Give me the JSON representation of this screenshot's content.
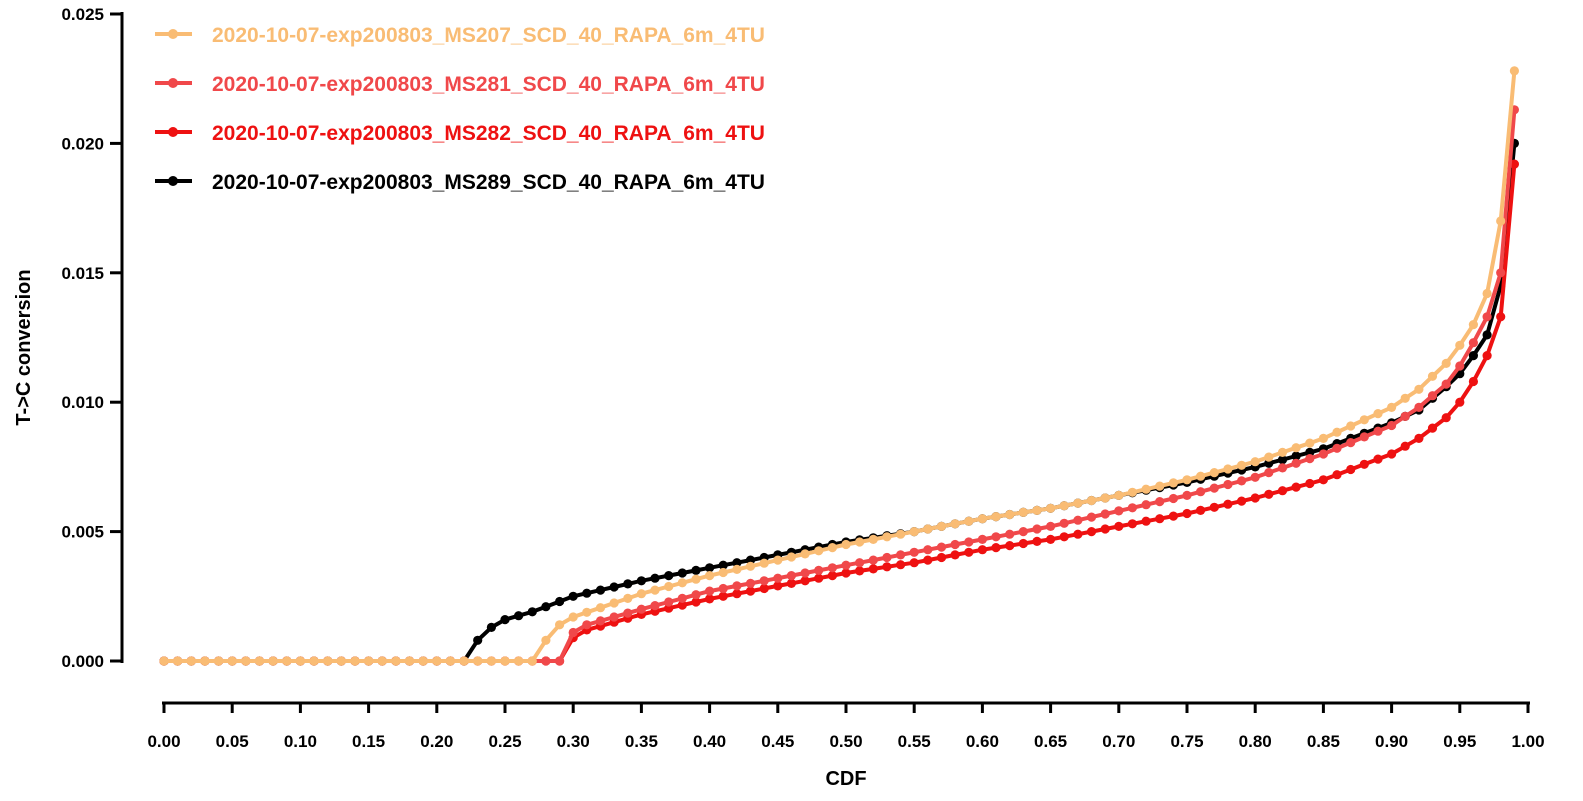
{
  "chart_data": {
    "type": "line",
    "title": "",
    "xlabel": "CDF",
    "ylabel": "T->C conversion",
    "xlim": [
      0,
      1
    ],
    "ylim": [
      0,
      0.025
    ],
    "x_ticks": [
      "0.00",
      "0.05",
      "0.10",
      "0.15",
      "0.20",
      "0.25",
      "0.30",
      "0.35",
      "0.40",
      "0.45",
      "0.50",
      "0.55",
      "0.60",
      "0.65",
      "0.70",
      "0.75",
      "0.80",
      "0.85",
      "0.90",
      "0.95",
      "1.00"
    ],
    "y_ticks": [
      "0.000",
      "0.005",
      "0.010",
      "0.015",
      "0.020",
      "0.025"
    ],
    "grid": false,
    "legend_position": "top-left",
    "series": [
      {
        "name": "2020-10-07-exp200803_MS207_SCD_40_RAPA_6m_4TU",
        "color": "#F9BC74",
        "x": [
          0.0,
          0.27,
          0.28,
          0.29,
          0.3,
          0.35,
          0.4,
          0.45,
          0.5,
          0.55,
          0.6,
          0.65,
          0.7,
          0.75,
          0.8,
          0.85,
          0.9,
          0.92,
          0.94,
          0.95,
          0.96,
          0.97,
          0.98,
          0.99
        ],
        "y": [
          0,
          0,
          0.0008,
          0.0014,
          0.0017,
          0.0026,
          0.0033,
          0.0039,
          0.0045,
          0.005,
          0.0055,
          0.0059,
          0.0064,
          0.007,
          0.0077,
          0.0086,
          0.0098,
          0.0105,
          0.0115,
          0.0122,
          0.013,
          0.0142,
          0.017,
          0.0228
        ]
      },
      {
        "name": "2020-10-07-exp200803_MS281_SCD_40_RAPA_6m_4TU",
        "color": "#F0484A",
        "x": [
          0.0,
          0.28,
          0.29,
          0.3,
          0.31,
          0.35,
          0.4,
          0.45,
          0.5,
          0.55,
          0.6,
          0.65,
          0.7,
          0.75,
          0.8,
          0.85,
          0.9,
          0.92,
          0.94,
          0.95,
          0.96,
          0.97,
          0.98,
          0.99
        ],
        "y": [
          0,
          0,
          0,
          0.0011,
          0.0014,
          0.002,
          0.0027,
          0.0032,
          0.0037,
          0.0042,
          0.0047,
          0.0052,
          0.0058,
          0.0064,
          0.0071,
          0.008,
          0.0091,
          0.0098,
          0.0107,
          0.0114,
          0.0123,
          0.0133,
          0.015,
          0.0213
        ]
      },
      {
        "name": "2020-10-07-exp200803_MS282_SCD_40_RAPA_6m_4TU",
        "color": "#EE1111",
        "x": [
          0.0,
          0.28,
          0.29,
          0.3,
          0.31,
          0.35,
          0.4,
          0.45,
          0.5,
          0.55,
          0.6,
          0.65,
          0.7,
          0.75,
          0.8,
          0.85,
          0.9,
          0.92,
          0.94,
          0.95,
          0.96,
          0.97,
          0.98,
          0.99
        ],
        "y": [
          0,
          0,
          0,
          0.0009,
          0.0012,
          0.0018,
          0.0024,
          0.0029,
          0.0034,
          0.0038,
          0.0043,
          0.0047,
          0.0052,
          0.0057,
          0.0063,
          0.007,
          0.008,
          0.0086,
          0.0094,
          0.01,
          0.0108,
          0.0118,
          0.0133,
          0.0192
        ]
      },
      {
        "name": "2020-10-07-exp200803_MS289_SCD_40_RAPA_6m_4TU",
        "color": "#000000",
        "x": [
          0.0,
          0.22,
          0.23,
          0.24,
          0.25,
          0.27,
          0.3,
          0.35,
          0.4,
          0.45,
          0.5,
          0.55,
          0.6,
          0.65,
          0.7,
          0.75,
          0.8,
          0.85,
          0.9,
          0.92,
          0.94,
          0.95,
          0.96,
          0.97,
          0.98,
          0.99
        ],
        "y": [
          0,
          0,
          0.0008,
          0.0013,
          0.0016,
          0.0019,
          0.0025,
          0.0031,
          0.0036,
          0.0041,
          0.0046,
          0.005,
          0.0055,
          0.0059,
          0.0064,
          0.0069,
          0.0075,
          0.0082,
          0.0092,
          0.0097,
          0.0106,
          0.0111,
          0.0118,
          0.0126,
          0.0145,
          0.02
        ]
      }
    ]
  }
}
